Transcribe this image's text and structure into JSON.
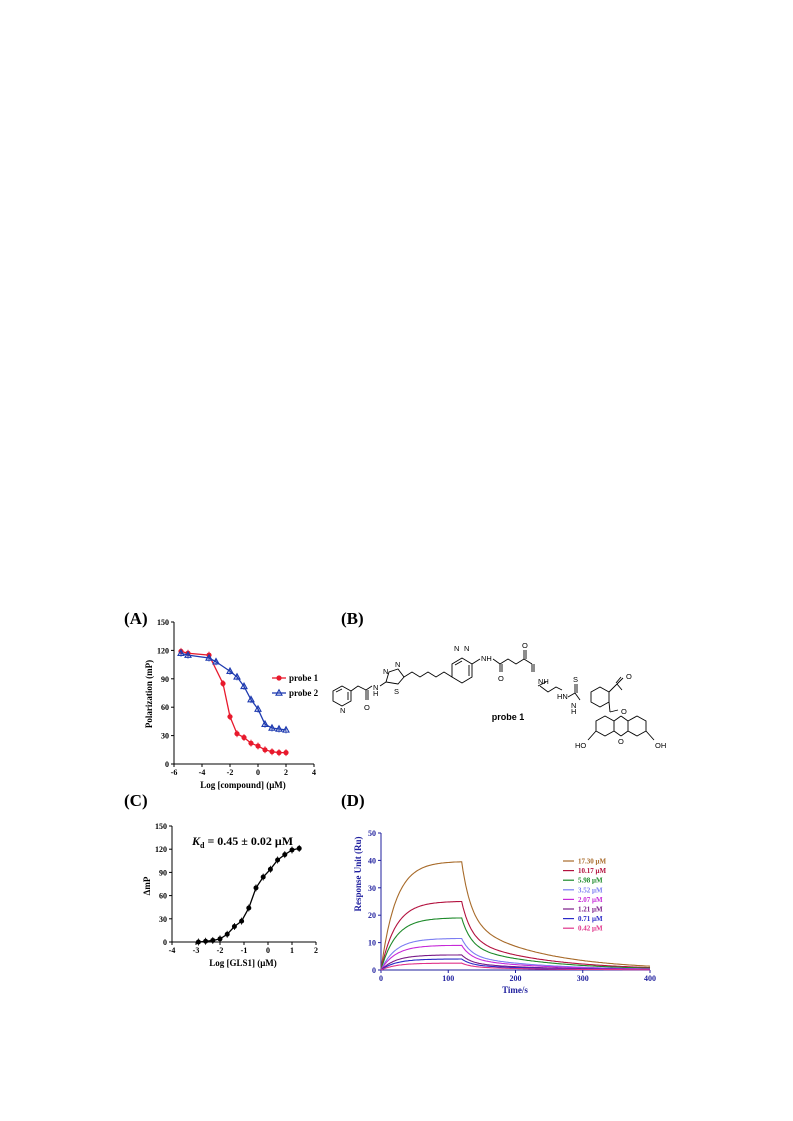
{
  "panels": {
    "A": {
      "label": "(A)"
    },
    "B": {
      "label": "(B)",
      "probe_name": "probe 1"
    },
    "C": {
      "label": "(C)"
    },
    "D": {
      "label": "(D)"
    }
  },
  "chart_data": [
    {
      "panel": "A",
      "type": "line",
      "xlabel": "Log [compound] (μM)",
      "ylabel": "Polarization (mP)",
      "xlim": [
        -6,
        4
      ],
      "ylim": [
        0,
        150
      ],
      "xticks": [
        -6,
        -4,
        -2,
        0,
        2,
        4
      ],
      "yticks": [
        0,
        30,
        60,
        90,
        120,
        150
      ],
      "legend_position": "right",
      "series": [
        {
          "name": "probe 1",
          "color": "#e8192c",
          "marker": "circle",
          "x": [
            -5.5,
            -5,
            -3.5,
            -2.5,
            -2,
            -1.5,
            -1,
            -0.5,
            0,
            0.5,
            1,
            1.5,
            2
          ],
          "y": [
            119,
            117,
            115,
            85,
            50,
            32,
            28,
            22,
            19,
            15,
            13,
            12,
            12
          ]
        },
        {
          "name": "probe 2",
          "color": "#1f3bb0",
          "marker": "triangle",
          "x": [
            -5.5,
            -5,
            -3.5,
            -3,
            -2,
            -1.5,
            -1,
            -0.5,
            0,
            0.5,
            1,
            1.5,
            2
          ],
          "y": [
            117,
            115,
            112,
            108,
            98,
            92,
            82,
            68,
            58,
            42,
            38,
            37,
            36
          ]
        }
      ]
    },
    {
      "panel": "C",
      "type": "line",
      "xlabel": "Log [GLS1] (μM)",
      "ylabel": "ΔmP",
      "annotation": "Kd = 0.45 ± 0.02 μM",
      "annotation_main": "K",
      "annotation_sub": "d",
      "annotation_rest": " = 0.45 ± 0.02 μM",
      "xlim": [
        -4,
        2
      ],
      "ylim": [
        0,
        150
      ],
      "xticks": [
        -4,
        -3,
        -2,
        -1,
        0,
        1,
        2
      ],
      "yticks": [
        0,
        30,
        60,
        90,
        120,
        150
      ],
      "series": [
        {
          "color": "#000000",
          "marker": "circle",
          "x": [
            -2.9,
            -2.6,
            -2.3,
            -2.0,
            -1.7,
            -1.4,
            -1.1,
            -0.8,
            -0.5,
            -0.2,
            0.1,
            0.4,
            0.7,
            1.0,
            1.3
          ],
          "y": [
            0,
            1,
            2,
            4,
            10,
            20,
            27,
            44,
            70,
            84,
            94,
            106,
            113,
            119,
            121
          ]
        }
      ]
    },
    {
      "panel": "D",
      "type": "line",
      "xlabel": "Time/s",
      "ylabel": "Response Unit (Ru)",
      "xlim": [
        0,
        400
      ],
      "ylim": [
        0,
        50
      ],
      "xticks": [
        0,
        100,
        200,
        300,
        400
      ],
      "yticks": [
        0,
        10,
        20,
        30,
        40,
        50
      ],
      "axis_color": "#1f1f9e",
      "legend_position": "right",
      "injection_end": 120,
      "series": [
        {
          "name": "17.30 μM",
          "color": "#a86b2a",
          "peak": 39.5
        },
        {
          "name": "10.17 μM",
          "color": "#b3123f",
          "peak": 25.0
        },
        {
          "name": "5.98 μM",
          "color": "#1d8a2a",
          "peak": 19.0
        },
        {
          "name": "3.52 μM",
          "color": "#7c7df2",
          "peak": 11.5
        },
        {
          "name": "2.07 μM",
          "color": "#c62ad8",
          "peak": 9.0
        },
        {
          "name": "1.21 μM",
          "color": "#7a1b88",
          "peak": 5.5
        },
        {
          "name": "0.71 μM",
          "color": "#2a2ac8",
          "peak": 4.0
        },
        {
          "name": "0.42 μM",
          "color": "#e0338a",
          "peak": 2.5
        }
      ]
    }
  ]
}
